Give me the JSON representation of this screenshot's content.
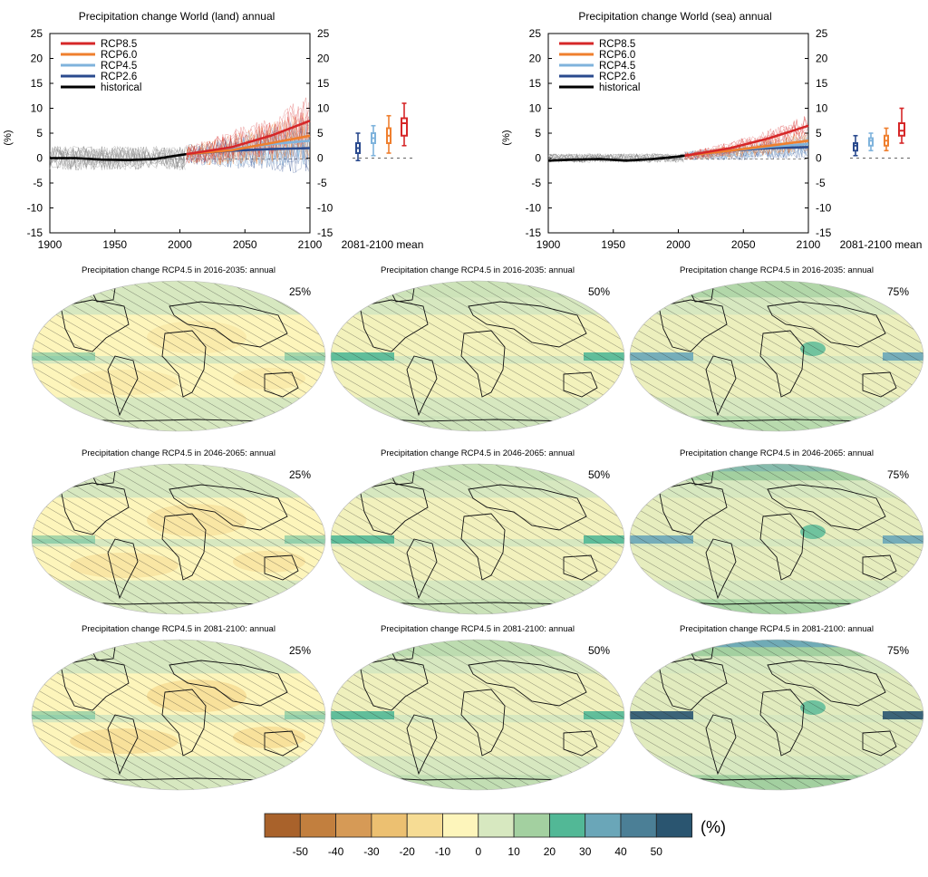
{
  "ts_panels": [
    {
      "title": "Precipitation change World (land) annual",
      "ylabel": "(%)",
      "xlim": [
        1900,
        2100
      ],
      "ylim": [
        -15,
        25
      ],
      "xticks": [
        "1900",
        "1950",
        "2000",
        "2050",
        "2100"
      ],
      "yticks": [
        "-15",
        "-10",
        "-5",
        "0",
        "5",
        "10",
        "15",
        "20",
        "25"
      ],
      "legend": [
        {
          "label": "RCP8.5",
          "color": "#d62728"
        },
        {
          "label": "RCP6.0",
          "color": "#ef7f2e"
        },
        {
          "label": "RCP4.5",
          "color": "#7fb3dc"
        },
        {
          "label": "RCP2.6",
          "color": "#2a4a8e"
        },
        {
          "label": "historical",
          "color": "#000000"
        }
      ],
      "box_xlabel": "2081-2100 mean"
    },
    {
      "title": "Precipitation change World (sea) annual",
      "ylabel": "(%)",
      "xlim": [
        1900,
        2100
      ],
      "ylim": [
        -15,
        25
      ],
      "xticks": [
        "1900",
        "1950",
        "2000",
        "2050",
        "2100"
      ],
      "yticks": [
        "-15",
        "-10",
        "-5",
        "0",
        "5",
        "10",
        "15",
        "20",
        "25"
      ],
      "legend": [
        {
          "label": "RCP8.5",
          "color": "#d62728"
        },
        {
          "label": "RCP6.0",
          "color": "#ef7f2e"
        },
        {
          "label": "RCP4.5",
          "color": "#7fb3dc"
        },
        {
          "label": "RCP2.6",
          "color": "#2a4a8e"
        },
        {
          "label": "historical",
          "color": "#000000"
        }
      ],
      "box_xlabel": "2081-2100 mean"
    }
  ],
  "chart_data": [
    {
      "type": "line",
      "title": "Precipitation change World (land) annual",
      "ylabel": "(%)",
      "xlim": [
        1900,
        2100
      ],
      "ylim": [
        -15,
        25
      ],
      "series": [
        {
          "name": "historical",
          "x": [
            1900,
            1920,
            1940,
            1960,
            1980,
            2000,
            2005
          ],
          "y": [
            0,
            0,
            -0.3,
            -0.4,
            -0.2,
            0.6,
            0.8
          ]
        },
        {
          "name": "RCP2.6",
          "x": [
            2005,
            2040,
            2070,
            2100
          ],
          "y": [
            0.8,
            1.5,
            1.8,
            2.0
          ]
        },
        {
          "name": "RCP4.5",
          "x": [
            2005,
            2040,
            2070,
            2100
          ],
          "y": [
            0.8,
            1.8,
            2.8,
            3.5
          ]
        },
        {
          "name": "RCP6.0",
          "x": [
            2005,
            2040,
            2070,
            2100
          ],
          "y": [
            0.8,
            1.6,
            3.0,
            4.5
          ]
        },
        {
          "name": "RCP8.5",
          "x": [
            2005,
            2040,
            2070,
            2100
          ],
          "y": [
            0.8,
            2.2,
            4.5,
            7.5
          ]
        }
      ],
      "boxes_2081_2100": [
        {
          "name": "RCP2.6",
          "color": "#2a4a8e",
          "min": -0.5,
          "q1": 1.0,
          "median": 2.0,
          "q3": 3.0,
          "max": 5.0
        },
        {
          "name": "RCP4.5",
          "color": "#7fb3dc",
          "min": 0.5,
          "q1": 3.0,
          "median": 4.0,
          "q3": 5.0,
          "max": 6.5
        },
        {
          "name": "RCP6.0",
          "color": "#ef7f2e",
          "min": 1.0,
          "q1": 3.0,
          "median": 4.5,
          "q3": 6.0,
          "max": 8.5
        },
        {
          "name": "RCP8.5",
          "color": "#d62728",
          "min": 2.5,
          "q1": 4.5,
          "median": 7.0,
          "q3": 8.0,
          "max": 11.0
        }
      ]
    },
    {
      "type": "line",
      "title": "Precipitation change World (sea) annual",
      "ylabel": "(%)",
      "xlim": [
        1900,
        2100
      ],
      "ylim": [
        -15,
        25
      ],
      "series": [
        {
          "name": "historical",
          "x": [
            1900,
            1920,
            1940,
            1960,
            1980,
            2000,
            2005
          ],
          "y": [
            -0.5,
            -0.3,
            -0.2,
            -0.5,
            -0.2,
            0.3,
            0.5
          ]
        },
        {
          "name": "RCP2.6",
          "x": [
            2005,
            2040,
            2070,
            2100
          ],
          "y": [
            0.5,
            1.5,
            2.0,
            2.2
          ]
        },
        {
          "name": "RCP4.5",
          "x": [
            2005,
            2040,
            2070,
            2100
          ],
          "y": [
            0.5,
            1.5,
            2.3,
            2.8
          ]
        },
        {
          "name": "RCP6.0",
          "x": [
            2005,
            2040,
            2070,
            2100
          ],
          "y": [
            0.5,
            1.5,
            2.5,
            3.5
          ]
        },
        {
          "name": "RCP8.5",
          "x": [
            2005,
            2040,
            2070,
            2100
          ],
          "y": [
            0.5,
            2.0,
            4.0,
            6.5
          ]
        }
      ],
      "boxes_2081_2100": [
        {
          "name": "RCP2.6",
          "color": "#2a4a8e",
          "min": 0.5,
          "q1": 1.5,
          "median": 2.5,
          "q3": 3.0,
          "max": 4.5
        },
        {
          "name": "RCP4.5",
          "color": "#7fb3dc",
          "min": 1.5,
          "q1": 2.5,
          "median": 3.5,
          "q3": 4.0,
          "max": 5.0
        },
        {
          "name": "RCP6.0",
          "color": "#ef7f2e",
          "min": 1.5,
          "q1": 2.5,
          "median": 3.5,
          "q3": 4.5,
          "max": 6.0
        },
        {
          "name": "RCP8.5",
          "color": "#d62728",
          "min": 3.0,
          "q1": 4.5,
          "median": 5.5,
          "q3": 7.0,
          "max": 10.0
        }
      ]
    },
    {
      "type": "heatmap",
      "maps": [
        {
          "title": "Precipitation change RCP4.5 in 2016-2035: annual",
          "percentile": "25%",
          "level": -0.4
        },
        {
          "title": "Precipitation change RCP4.5 in 2016-2035: annual",
          "percentile": "50%",
          "level": 0.2
        },
        {
          "title": "Precipitation change RCP4.5 in 2016-2035: annual",
          "percentile": "75%",
          "level": 0.7
        },
        {
          "title": "Precipitation change RCP4.5 in 2046-2065: annual",
          "percentile": "25%",
          "level": -0.6
        },
        {
          "title": "Precipitation change RCP4.5 in 2046-2065: annual",
          "percentile": "50%",
          "level": 0.3
        },
        {
          "title": "Precipitation change RCP4.5 in 2046-2065: annual",
          "percentile": "75%",
          "level": 1.1
        },
        {
          "title": "Precipitation change RCP4.5 in 2081-2100: annual",
          "percentile": "25%",
          "level": -0.8
        },
        {
          "title": "Precipitation change RCP4.5 in 2081-2100: annual",
          "percentile": "50%",
          "level": 0.5
        },
        {
          "title": "Precipitation change RCP4.5 in 2081-2100: annual",
          "percentile": "75%",
          "level": 1.5
        }
      ],
      "colorbar": {
        "unit": "(%)",
        "ticks": [
          "-50",
          "-40",
          "-30",
          "-20",
          "-10",
          "0",
          "10",
          "20",
          "30",
          "40",
          "50"
        ],
        "colors": [
          "#a9622b",
          "#c27f3e",
          "#d69a56",
          "#ecc071",
          "#f6dc94",
          "#fdf5bb",
          "#d7e8c0",
          "#a3d0a0",
          "#52b896",
          "#6aa6b8",
          "#4b7f96",
          "#2a5570"
        ]
      }
    }
  ]
}
